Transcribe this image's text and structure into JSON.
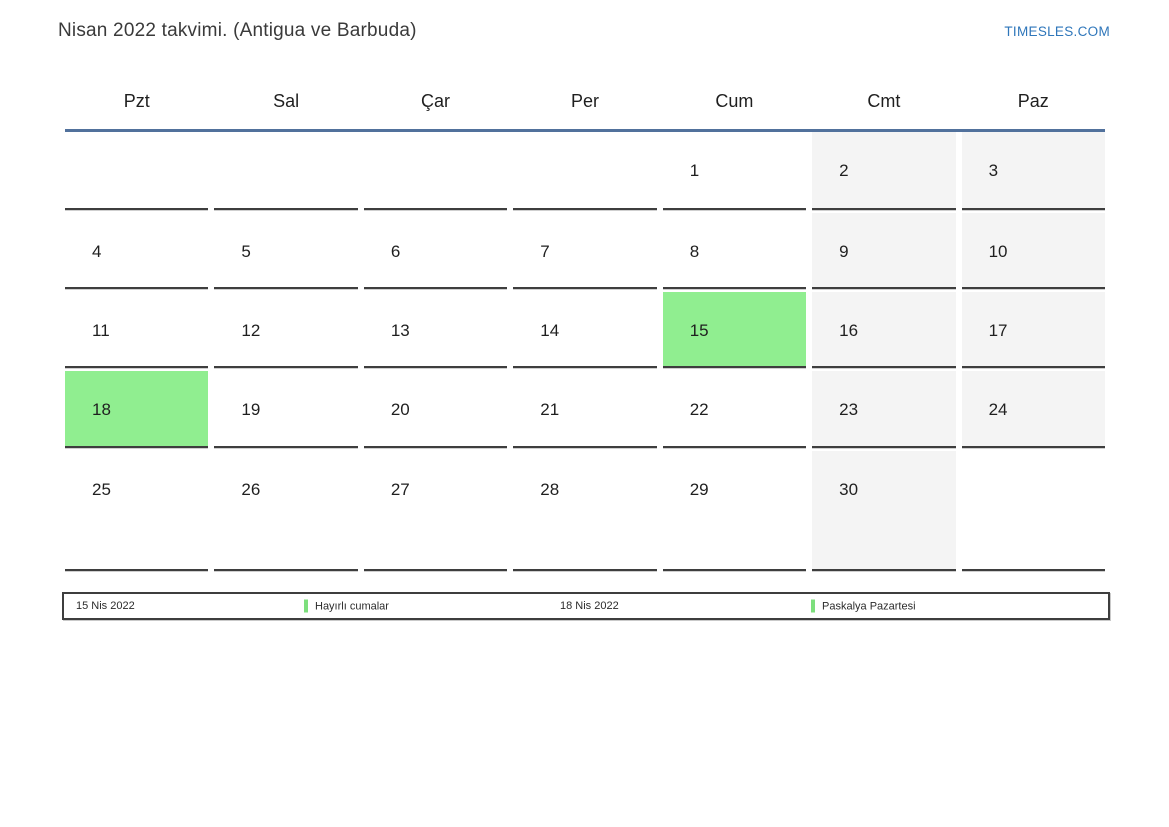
{
  "header": {
    "title": "Nisan 2022 takvimi. (Antigua ve Barbuda)",
    "site": "TIMESLES.COM"
  },
  "weekdays": [
    "Pzt",
    "Sal",
    "Çar",
    "Per",
    "Cum",
    "Cmt",
    "Paz"
  ],
  "weeks": [
    [
      {
        "day": "",
        "kind": "empty"
      },
      {
        "day": "",
        "kind": "empty"
      },
      {
        "day": "",
        "kind": "empty"
      },
      {
        "day": "",
        "kind": "empty"
      },
      {
        "day": "1",
        "kind": "normal"
      },
      {
        "day": "2",
        "kind": "weekend"
      },
      {
        "day": "3",
        "kind": "weekend"
      }
    ],
    [
      {
        "day": "4",
        "kind": "normal"
      },
      {
        "day": "5",
        "kind": "normal"
      },
      {
        "day": "6",
        "kind": "normal"
      },
      {
        "day": "7",
        "kind": "normal"
      },
      {
        "day": "8",
        "kind": "normal"
      },
      {
        "day": "9",
        "kind": "weekend"
      },
      {
        "day": "10",
        "kind": "weekend"
      }
    ],
    [
      {
        "day": "11",
        "kind": "normal"
      },
      {
        "day": "12",
        "kind": "normal"
      },
      {
        "day": "13",
        "kind": "normal"
      },
      {
        "day": "14",
        "kind": "normal"
      },
      {
        "day": "15",
        "kind": "holiday"
      },
      {
        "day": "16",
        "kind": "weekend"
      },
      {
        "day": "17",
        "kind": "weekend"
      }
    ],
    [
      {
        "day": "18",
        "kind": "holiday"
      },
      {
        "day": "19",
        "kind": "normal"
      },
      {
        "day": "20",
        "kind": "normal"
      },
      {
        "day": "21",
        "kind": "normal"
      },
      {
        "day": "22",
        "kind": "normal"
      },
      {
        "day": "23",
        "kind": "weekend"
      },
      {
        "day": "24",
        "kind": "weekend"
      }
    ],
    [
      {
        "day": "25",
        "kind": "normal"
      },
      {
        "day": "26",
        "kind": "normal"
      },
      {
        "day": "27",
        "kind": "normal"
      },
      {
        "day": "28",
        "kind": "normal"
      },
      {
        "day": "29",
        "kind": "normal"
      },
      {
        "day": "30",
        "kind": "weekend"
      },
      {
        "day": "",
        "kind": "empty"
      }
    ]
  ],
  "legend": [
    {
      "date": "15 Nis 2022",
      "label": "Hayırlı cumalar"
    },
    {
      "date": "18 Nis 2022",
      "label": "Paskalya Pazartesi"
    }
  ],
  "colors": {
    "holiday_green": "#90ee90",
    "weekend_gray": "#f4f4f4",
    "header_line_blue": "#51719c",
    "link_blue": "#2e76ba",
    "legend_bar_green": "#7ddf7d",
    "border_dark": "#3e3e3e"
  }
}
